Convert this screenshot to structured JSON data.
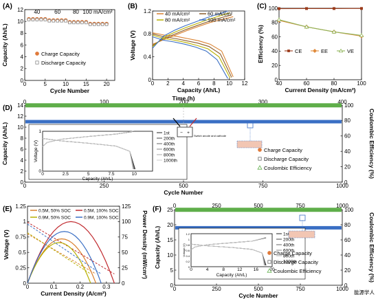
{
  "chart_data": [
    {
      "panel": "(A)",
      "type": "scatter",
      "xlabel": "Cycle Number",
      "ylabel": "Capacity (Ah/L)",
      "xlim": [
        0,
        22
      ],
      "ylim": [
        0,
        12
      ],
      "xticks": [
        0,
        5,
        10,
        15,
        20
      ],
      "yticks": [
        0,
        2,
        4,
        6,
        8,
        10,
        12
      ],
      "annotations": [
        "40",
        "60",
        "80",
        "100 mA/cm²"
      ],
      "x": [
        1,
        2,
        3,
        4,
        5,
        6,
        7,
        8,
        9,
        10,
        11,
        12,
        13,
        14,
        15,
        16,
        17,
        18,
        19,
        20
      ],
      "series": [
        {
          "name": "Charge Capacity",
          "values": [
            10.4,
            10.4,
            10.4,
            10.4,
            10.4,
            10.2,
            10.2,
            10.2,
            10.2,
            10.2,
            9.9,
            9.9,
            9.9,
            9.9,
            9.9,
            9.6,
            9.6,
            9.6,
            9.6,
            9.6
          ]
        },
        {
          "name": "Discharge Capacity",
          "values": [
            10.3,
            10.3,
            10.3,
            10.3,
            10.3,
            10.1,
            10.1,
            10.1,
            10.1,
            10.1,
            9.8,
            9.8,
            9.8,
            9.8,
            9.8,
            9.5,
            9.5,
            9.5,
            9.5,
            9.5
          ]
        }
      ],
      "legend": "center-right"
    },
    {
      "panel": "(B)",
      "type": "line",
      "xlabel": "Capacity (Ah/L)",
      "ylabel": "Voltage (V)",
      "xlim": [
        0,
        12
      ],
      "ylim": [
        0,
        1.2
      ],
      "xticks": [
        0,
        2,
        4,
        6,
        8,
        10,
        12
      ],
      "yticks": [
        0,
        0.4,
        0.8,
        1.2
      ],
      "series": [
        {
          "name": "40 mA/cm²",
          "color": "#d97f2c",
          "cap": 10.5,
          "charge": [
            0.62,
            0.7,
            0.78,
            0.86,
            0.93,
            1.0,
            1.05,
            1.1
          ],
          "discharge": [
            0.82,
            0.78,
            0.76,
            0.72,
            0.68,
            0.62,
            0.5,
            0.05
          ]
        },
        {
          "name": "60 mA/cm²",
          "color": "#8b5c2a",
          "cap": 10.3,
          "charge": [
            0.6,
            0.72,
            0.8,
            0.88,
            0.95,
            1.02,
            1.08,
            1.13
          ],
          "discharge": [
            0.8,
            0.75,
            0.72,
            0.68,
            0.64,
            0.58,
            0.45,
            0.04
          ]
        },
        {
          "name": "80 mA/cm²",
          "color": "#b8b000",
          "cap": 10.1,
          "charge": [
            0.58,
            0.74,
            0.83,
            0.91,
            0.98,
            1.05,
            1.11,
            1.17
          ],
          "discharge": [
            0.78,
            0.72,
            0.69,
            0.65,
            0.6,
            0.54,
            0.4,
            0.03
          ]
        },
        {
          "name": "100 mA/cm²",
          "color": "#3a6fc4",
          "cap": 9.8,
          "charge": [
            0.55,
            0.76,
            0.86,
            0.94,
            1.01,
            1.08,
            1.14,
            1.2
          ],
          "discharge": [
            0.75,
            0.69,
            0.66,
            0.62,
            0.57,
            0.5,
            0.35,
            0.02
          ]
        }
      ]
    },
    {
      "panel": "(C)",
      "type": "line",
      "xlabel": "Current Density (mA/cm²)",
      "ylabel": "Efficiency (%)",
      "xlim": [
        40,
        100
      ],
      "ylim": [
        0,
        100
      ],
      "xticks": [
        40,
        60,
        80,
        100
      ],
      "yticks": [
        0,
        20,
        40,
        60,
        80,
        100
      ],
      "x": [
        40,
        60,
        80,
        100
      ],
      "series": [
        {
          "name": "CE",
          "color": "#9b3a1a",
          "values": [
            99.5,
            99.6,
            99.6,
            99.7
          ]
        },
        {
          "name": "EE",
          "color": "#e08a3a",
          "values": [
            83,
            74,
            67,
            61
          ]
        },
        {
          "name": "VE",
          "color": "#8fb55a",
          "values": [
            84,
            74,
            67,
            62
          ]
        }
      ],
      "legend": "bottom-center"
    },
    {
      "panel": "(D)",
      "type": "scatter",
      "xlabel": "Cycle Number",
      "ylabel": "Capacity (Ah/L)",
      "y2label": "Coulombic Efficiency (%)",
      "x2label": "Time (h)",
      "xlim": [
        0,
        1000
      ],
      "ylim": [
        0,
        14
      ],
      "y2lim": [
        0,
        100
      ],
      "xticks": [
        0,
        250,
        500,
        750,
        1000
      ],
      "yticks": [
        0,
        2,
        4,
        6,
        8,
        10,
        12,
        14
      ],
      "y2ticks": [
        0,
        20,
        40,
        60,
        80,
        100
      ],
      "x2ticks": [
        0,
        100,
        200,
        300,
        400
      ],
      "series": [
        {
          "name": "Charge Capacity",
          "value": 11.0
        },
        {
          "name": "Discharge Capacity",
          "value": 10.9
        },
        {
          "name": "Coulombic Efficiency",
          "value": 99.8
        }
      ],
      "annotation": "Switch anode and cathode",
      "inset": {
        "type": "line",
        "xlabel": "Capacity (Ah/L)",
        "ylabel": "Voltage (V)",
        "xlim": [
          0,
          12
        ],
        "ylim": [
          0,
          1
        ],
        "xticks": [
          0,
          2.5,
          5,
          7.5,
          10
        ],
        "yticks": [
          0,
          1
        ],
        "series": [
          "1st",
          "200th",
          "400th",
          "600th",
          "800th",
          "1000th"
        ]
      }
    },
    {
      "panel": "(E)",
      "type": "line",
      "xlabel": "Current Density (A/cm²)",
      "ylabel": "Voltage (V)",
      "y2label": "Power Density (mW/cm²)",
      "xlim": [
        0,
        0.35
      ],
      "ylim": [
        0,
        1.25
      ],
      "y2lim": [
        0,
        125
      ],
      "xticks": [
        0,
        0.1,
        0.2,
        0.3
      ],
      "yticks": [
        0,
        0.25,
        0.5,
        0.75,
        1.0,
        1.25
      ],
      "y2ticks": [
        0,
        25,
        50,
        75,
        100,
        125
      ],
      "series": [
        {
          "name": "0.5M, 50% SOC",
          "color": "#d97f2c",
          "vmax": 0.05,
          "ocv": 0.8,
          "jmax": 0.26,
          "pmax": 72
        },
        {
          "name": "0.5M, 100% SOC",
          "color": "#c0282d",
          "vmax": 0.05,
          "ocv": 0.99,
          "jmax": 0.33,
          "pmax": 100
        },
        {
          "name": "0.9M, 50% SOC",
          "color": "#b8b000",
          "vmax": 0.05,
          "ocv": 0.82,
          "jmax": 0.24,
          "pmax": 66
        },
        {
          "name": "0.9M, 100% SOC",
          "color": "#3a6fc4",
          "vmax": 0.05,
          "ocv": 0.96,
          "jmax": 0.28,
          "pmax": 84
        }
      ]
    },
    {
      "panel": "(F)",
      "type": "scatter",
      "xlabel": "Cycle Number",
      "ylabel": "Capacity (Ah/L)",
      "y2label": "Coulombic Efficiency (%)",
      "xlim": [
        0,
        1000
      ],
      "ylim": [
        0,
        25
      ],
      "y2lim": [
        0,
        100
      ],
      "xticks": [
        0,
        250,
        500,
        750,
        1000
      ],
      "yticks": [
        0,
        5,
        10,
        15,
        20,
        25
      ],
      "y2ticks": [
        0,
        20,
        40,
        60,
        80,
        100
      ],
      "x2ticks": [
        0,
        250,
        500,
        750,
        1000
      ],
      "series": [
        {
          "name": "Charge Capacity",
          "value": 19.0
        },
        {
          "name": "Discharge Capacity",
          "value": 18.9
        },
        {
          "name": "Coulombic Efficiency",
          "value": 99.8
        }
      ],
      "inset": {
        "type": "line",
        "xlabel": "Capacity (Ah/L)",
        "ylabel": "Voltage (V)",
        "xlim": [
          0,
          20
        ],
        "ylim": [
          0,
          1.2
        ],
        "xticks": [
          0,
          4,
          8,
          12,
          16,
          20
        ],
        "yticks": [
          0,
          0.2,
          0.4,
          0.6,
          0.8,
          1.0,
          1.2
        ],
        "series": [
          "1st",
          "200th",
          "400th",
          "600th",
          "800th",
          "1000th"
        ]
      }
    }
  ],
  "watermark": "能源学人"
}
